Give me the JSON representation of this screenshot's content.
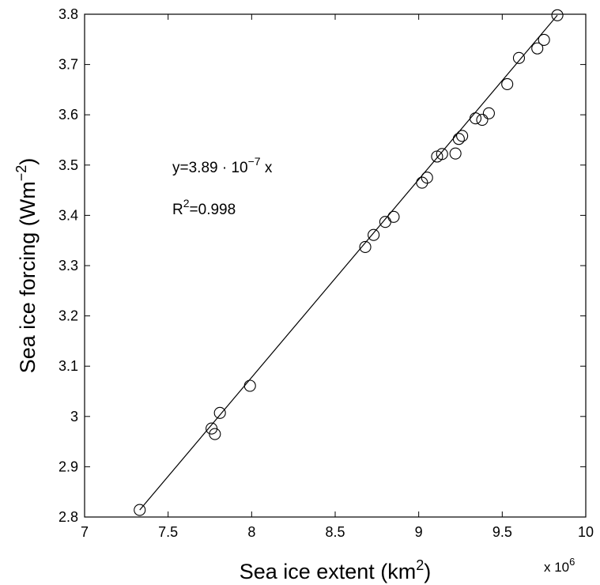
{
  "chart_data": {
    "type": "scatter",
    "xlabel": "Sea ice extent (km",
    "xlabel_sup": "2",
    "xlabel_tail": ")",
    "ylabel": "Sea ice forcing (Wm",
    "ylabel_sup": "−2",
    "ylabel_tail": ")",
    "x_multiplier": "x 10",
    "x_multiplier_sup": "6",
    "xlim": [
      7,
      10
    ],
    "ylim": [
      2.8,
      3.8
    ],
    "xticks": [
      7,
      7.5,
      8,
      8.5,
      9,
      9.5,
      10
    ],
    "xtick_labels": [
      "7",
      "7.5",
      "8",
      "8.5",
      "9",
      "9.5",
      "10"
    ],
    "yticks": [
      2.8,
      2.9,
      3.0,
      3.1,
      3.2,
      3.3,
      3.4,
      3.5,
      3.6,
      3.7,
      3.8
    ],
    "ytick_labels": [
      "2.8",
      "2.9",
      "3",
      "3.1",
      "3.2",
      "3.3",
      "3.4",
      "3.5",
      "3.6",
      "3.7",
      "3.8"
    ],
    "grid": false,
    "marker": "open-circle",
    "points": [
      {
        "x": 7.33,
        "y": 2.814
      },
      {
        "x": 7.76,
        "y": 2.976
      },
      {
        "x": 7.78,
        "y": 2.965
      },
      {
        "x": 7.81,
        "y": 3.007
      },
      {
        "x": 7.99,
        "y": 3.061
      },
      {
        "x": 8.68,
        "y": 3.337
      },
      {
        "x": 8.73,
        "y": 3.361
      },
      {
        "x": 8.8,
        "y": 3.387
      },
      {
        "x": 8.85,
        "y": 3.397
      },
      {
        "x": 9.02,
        "y": 3.465
      },
      {
        "x": 9.05,
        "y": 3.475
      },
      {
        "x": 9.11,
        "y": 3.517
      },
      {
        "x": 9.14,
        "y": 3.522
      },
      {
        "x": 9.22,
        "y": 3.523
      },
      {
        "x": 9.24,
        "y": 3.552
      },
      {
        "x": 9.26,
        "y": 3.558
      },
      {
        "x": 9.34,
        "y": 3.593
      },
      {
        "x": 9.38,
        "y": 3.59
      },
      {
        "x": 9.42,
        "y": 3.603
      },
      {
        "x": 9.53,
        "y": 3.661
      },
      {
        "x": 9.6,
        "y": 3.713
      },
      {
        "x": 9.71,
        "y": 3.732
      },
      {
        "x": 9.75,
        "y": 3.749
      },
      {
        "x": 9.83,
        "y": 3.798
      }
    ],
    "fit_line": {
      "x": [
        7.33,
        9.83
      ],
      "y": [
        2.814,
        3.798
      ]
    },
    "annotations": {
      "equation": "y=3.89 · 10",
      "equation_exp": "−7",
      "equation_tail": " x",
      "r2_prefix": "R",
      "r2_sup": "2",
      "r2_value": "=0.998"
    }
  }
}
